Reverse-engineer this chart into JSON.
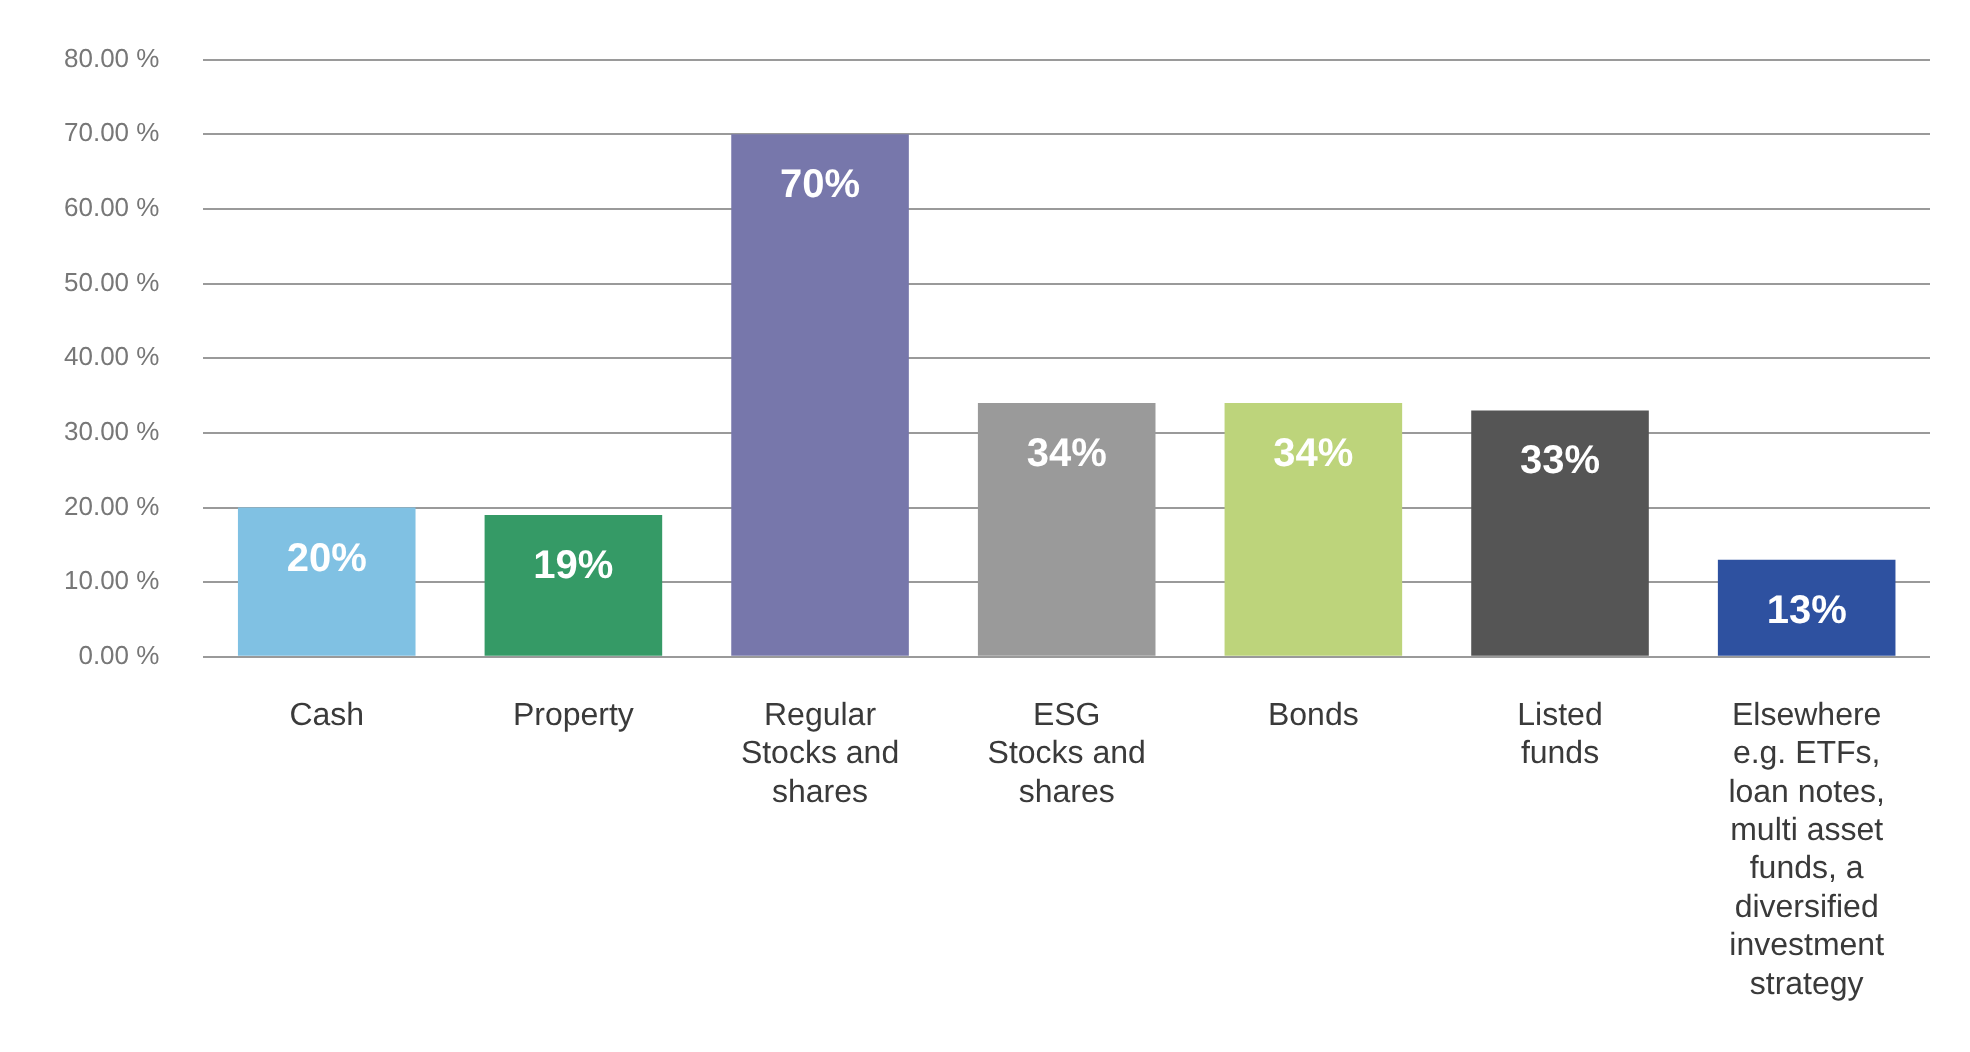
{
  "chart_data": {
    "type": "bar",
    "categories": [
      "Cash",
      "Property",
      "Regular Stocks and shares",
      "ESG Stocks and shares",
      "Bonds",
      "Listed funds",
      "Elsewhere e.g. ETFs, loan notes, multi asset funds, a diversified investment strategy"
    ],
    "values": [
      20,
      19,
      70,
      34,
      34,
      33,
      13
    ],
    "colors": [
      "#80c1e3",
      "#359a66",
      "#7777ab",
      "#9a9a9a",
      "#bdd47b",
      "#555555",
      "#2e51a0"
    ],
    "value_labels": [
      "20%",
      "19%",
      "70%",
      "34%",
      "34%",
      "33%",
      "13%"
    ],
    "ylim": [
      0,
      80
    ],
    "yticks": [
      {
        "value": 0,
        "label": "0.00 %"
      },
      {
        "value": 10,
        "label": "10.00 %"
      },
      {
        "value": 20,
        "label": "20.00 %"
      },
      {
        "value": 30,
        "label": "30.00 %"
      },
      {
        "value": 40,
        "label": "40.00 %"
      },
      {
        "value": 50,
        "label": "50.00 %"
      },
      {
        "value": 60,
        "label": "60.00 %"
      },
      {
        "value": 70,
        "label": "70.00 %"
      },
      {
        "value": 80,
        "label": "80.00 %"
      }
    ],
    "grid": "y",
    "legend": false
  }
}
